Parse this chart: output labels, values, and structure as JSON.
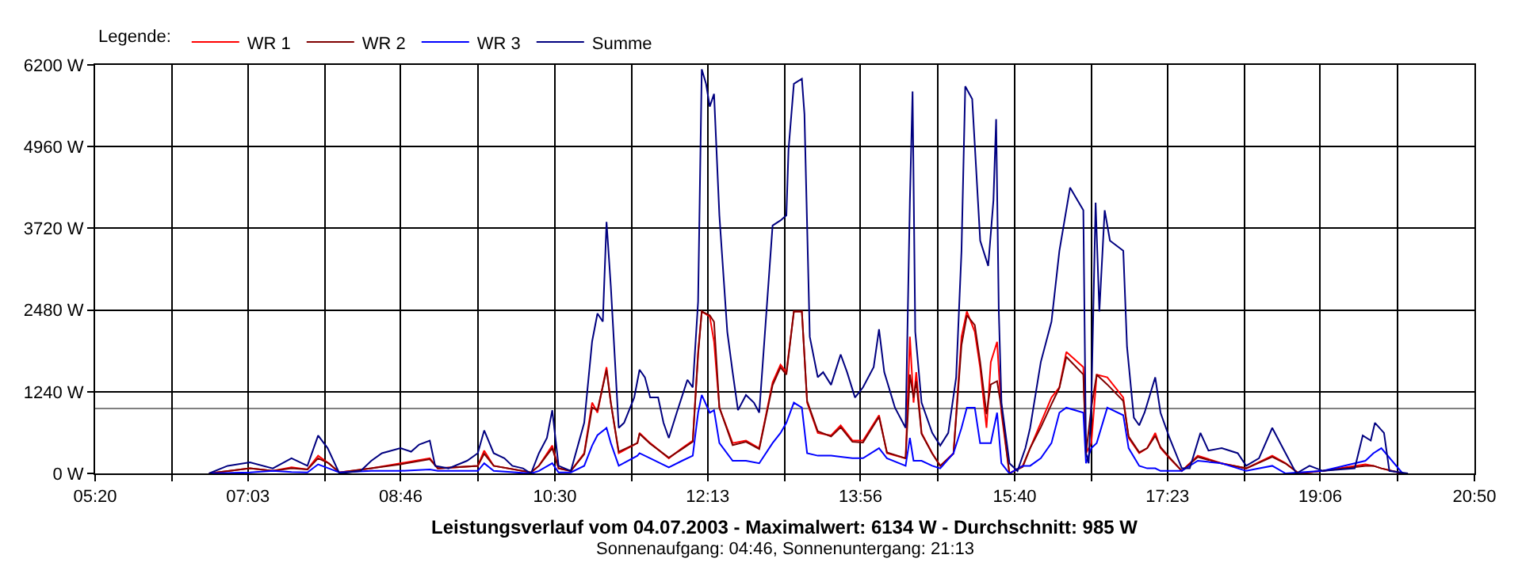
{
  "chart_data": {
    "type": "line",
    "title": "Leistungsverlauf vom 04.07.2003 - Maximalwert: 6134 W - Durchschnitt: 985 W",
    "subtitle": "Sonnenaufgang: 04:46, Sonnenuntergang: 21:13",
    "legend_title": "Legende:",
    "legend": "top left",
    "grid": true,
    "line_style": "solid",
    "xlim": [
      5.333,
      20.833
    ],
    "xticks": [
      {
        "value": 5.333,
        "label": "05:20"
      },
      {
        "value": 6.194,
        "label": null
      },
      {
        "value": 7.05,
        "label": "07:03"
      },
      {
        "value": 7.917,
        "label": null
      },
      {
        "value": 8.7667,
        "label": "08:46"
      },
      {
        "value": 9.639,
        "label": null
      },
      {
        "value": 10.5,
        "label": "10:30"
      },
      {
        "value": 11.361,
        "label": null
      },
      {
        "value": 12.2167,
        "label": "12:13"
      },
      {
        "value": 13.083,
        "label": null
      },
      {
        "value": 13.9333,
        "label": "13:56"
      },
      {
        "value": 14.806,
        "label": null
      },
      {
        "value": 15.667,
        "label": "15:40"
      },
      {
        "value": 16.528,
        "label": null
      },
      {
        "value": 17.3833,
        "label": "17:23"
      },
      {
        "value": 18.25,
        "label": null
      },
      {
        "value": 19.1,
        "label": "19:06"
      },
      {
        "value": 19.972,
        "label": null
      },
      {
        "value": 20.833,
        "label": "20:50"
      }
    ],
    "ylim": [
      0,
      6200
    ],
    "yticks": [
      {
        "value": 0,
        "label": "0 W"
      },
      {
        "value": 1240,
        "label": "1240 W"
      },
      {
        "value": 2480,
        "label": "2480 W"
      },
      {
        "value": 3720,
        "label": "3720 W"
      },
      {
        "value": 4960,
        "label": "4960 W"
      },
      {
        "value": 6200,
        "label": "6200 W"
      }
    ],
    "ref_lines": [
      {
        "axis": "y",
        "value": 985,
        "color": "#808080"
      }
    ],
    "x": [
      6.613,
      7.073,
      7.33,
      7.54,
      7.719,
      7.839,
      7.958,
      8.078,
      8.437,
      8.765,
      9.094,
      9.184,
      9.633,
      9.705,
      9.812,
      10.231,
      10.32,
      10.47,
      10.541,
      10.679,
      10.829,
      10.918,
      10.978,
      11.08,
      11.128,
      11.217,
      11.427,
      11.451,
      11.57,
      11.78,
      11.929,
      12.049,
      12.109,
      12.15,
      12.24,
      12.288,
      12.348,
      12.497,
      12.647,
      12.796,
      12.946,
      13.035,
      13.101,
      13.185,
      13.275,
      13.334,
      13.454,
      13.603,
      13.711,
      13.843,
      13.962,
      14.142,
      14.231,
      14.441,
      14.489,
      14.53,
      14.56,
      14.62,
      14.74,
      14.83,
      14.979,
      15.069,
      15.129,
      15.218,
      15.278,
      15.35,
      15.398,
      15.469,
      15.517,
      15.607,
      15.757,
      15.84,
      15.96,
      16.08,
      16.169,
      16.247,
      16.438,
      16.468,
      16.528,
      16.588,
      16.707,
      16.887,
      16.947,
      17.066,
      17.156,
      17.246,
      17.305,
      17.407,
      17.545,
      17.724,
      17.993,
      18.268,
      18.561,
      18.711,
      18.86,
      19.13,
      19.608,
      19.698,
      19.787,
      20.026
    ],
    "series": [
      {
        "name": "WR 1",
        "color": "#ff0000",
        "values": [
          0,
          77,
          38,
          92,
          61,
          269,
          154,
          15,
          77,
          154,
          230,
          77,
          115,
          346,
          115,
          15,
          115,
          422,
          77,
          38,
          307,
          1075,
          922,
          1613,
          1075,
          307,
          461,
          614,
          461,
          230,
          384,
          499,
          1843,
          2458,
          2381,
          2000,
          998,
          461,
          499,
          384,
          1382,
          1651,
          1536,
          2458,
          2458,
          1075,
          614,
          576,
          730,
          499,
          499,
          883,
          307,
          230,
          2074,
          1075,
          1536,
          614,
          307,
          115,
          307,
          2074,
          2458,
          2150,
          1613,
          691,
          1690,
          1997,
          922,
          0,
          115,
          384,
          768,
          1152,
          1306,
          1843,
          1613,
          307,
          461,
          1498,
          1459,
          1152,
          538,
          307,
          384,
          614,
          384,
          230,
          38,
          269,
          154,
          77,
          269,
          154,
          0,
          38,
          138,
          115,
          77,
          0
        ]
      },
      {
        "name": "WR 2",
        "color": "#800000",
        "values": [
          0,
          77,
          38,
          77,
          61,
          230,
          154,
          15,
          77,
          138,
          215,
          77,
          115,
          300,
          115,
          15,
          115,
          384,
          77,
          38,
          290,
          1000,
          960,
          1570,
          1075,
          330,
          461,
          600,
          450,
          240,
          370,
          480,
          1800,
          2458,
          2400,
          2300,
          1000,
          430,
          480,
          370,
          1340,
          1610,
          1500,
          2458,
          2458,
          1100,
          640,
          560,
          700,
          480,
          470,
          860,
          320,
          230,
          1500,
          1150,
          1400,
          600,
          300,
          115,
          300,
          1950,
          2400,
          2250,
          1700,
          900,
          1350,
          1400,
          1000,
          0,
          100,
          384,
          700,
          1050,
          1300,
          1770,
          1500,
          300,
          1000,
          1498,
          1350,
          1100,
          560,
          320,
          384,
          570,
          400,
          240,
          38,
          250,
          150,
          77,
          250,
          150,
          0,
          38,
          115,
          115,
          77,
          0
        ]
      },
      {
        "name": "WR 3",
        "color": "#0000ff",
        "values": [
          0,
          15,
          38,
          20,
          15,
          138,
          77,
          15,
          38,
          38,
          61,
          38,
          38,
          154,
          38,
          0,
          38,
          154,
          15,
          15,
          115,
          422,
          580,
          691,
          461,
          115,
          269,
          307,
          230,
          92,
          192,
          269,
          922,
          1190,
          922,
          960,
          461,
          192,
          192,
          154,
          461,
          614,
          768,
          1075,
          998,
          307,
          269,
          269,
          253,
          230,
          230,
          384,
          230,
          115,
          538,
          192,
          192,
          192,
          115,
          77,
          307,
          691,
          998,
          998,
          461,
          461,
          461,
          922,
          154,
          0,
          115,
          115,
          230,
          461,
          922,
          998,
          922,
          154,
          384,
          461,
          998,
          883,
          384,
          115,
          77,
          77,
          38,
          38,
          38,
          192,
          154,
          38,
          115,
          0,
          15,
          38,
          192,
          307,
          384,
          0
        ]
      },
      {
        "name": "Summe",
        "color": "#000080",
        "x": [
          6.613,
          6.822,
          7.073,
          7.33,
          7.54,
          7.719,
          7.839,
          7.946,
          8.078,
          8.317,
          8.437,
          8.556,
          8.765,
          8.884,
          8.974,
          9.094,
          9.154,
          9.304,
          9.513,
          9.633,
          9.705,
          9.812,
          9.932,
          10.021,
          10.141,
          10.231,
          10.32,
          10.41,
          10.47,
          10.541,
          10.679,
          10.829,
          10.918,
          10.978,
          11.038,
          11.08,
          11.128,
          11.217,
          11.277,
          11.391,
          11.451,
          11.511,
          11.57,
          11.66,
          11.72,
          11.78,
          11.869,
          11.989,
          12.049,
          12.109,
          12.15,
          12.198,
          12.24,
          12.288,
          12.348,
          12.437,
          12.497,
          12.557,
          12.647,
          12.736,
          12.796,
          12.946,
          13.035,
          13.101,
          13.125,
          13.185,
          13.275,
          13.304,
          13.364,
          13.454,
          13.514,
          13.603,
          13.711,
          13.783,
          13.872,
          13.962,
          14.082,
          14.142,
          14.201,
          14.321,
          14.441,
          14.489,
          14.519,
          14.549,
          14.62,
          14.74,
          14.83,
          14.92,
          15.009,
          15.069,
          15.111,
          15.189,
          15.279,
          15.369,
          15.428,
          15.458,
          15.488,
          15.518,
          15.608,
          15.698,
          15.787,
          15.84,
          15.96,
          16.08,
          16.169,
          16.289,
          16.438,
          16.468,
          16.498,
          16.528,
          16.576,
          16.618,
          16.678,
          16.737,
          16.887,
          16.929,
          17.006,
          17.066,
          17.126,
          17.246,
          17.305,
          17.407,
          17.545,
          17.634,
          17.754,
          17.844,
          17.993,
          18.173,
          18.268,
          18.412,
          18.561,
          18.711,
          18.831,
          18.98,
          19.13,
          19.488,
          19.578,
          19.668,
          19.715,
          19.817,
          19.877,
          20.086
        ],
        "values": [
          0,
          115,
          169,
          77,
          230,
          115,
          576,
          384,
          0,
          38,
          192,
          307,
          384,
          330,
          438,
          499,
          115,
          77,
          192,
          307,
          653,
          307,
          230,
          115,
          77,
          0,
          307,
          538,
          960,
          115,
          38,
          768,
          2004,
          2427,
          2304,
          3817,
          2842,
          691,
          768,
          1152,
          1574,
          1459,
          1152,
          1152,
          768,
          538,
          922,
          1421,
          1306,
          2611,
          6134,
          5914,
          5568,
          5760,
          3917,
          2150,
          1536,
          960,
          1190,
          1075,
          922,
          3763,
          3840,
          3917,
          4915,
          5914,
          5990,
          5453,
          2074,
          1459,
          1536,
          1344,
          1805,
          1536,
          1152,
          1306,
          1613,
          2189,
          1536,
          998,
          691,
          4147,
          5798,
          2150,
          1075,
          614,
          422,
          614,
          1459,
          3379,
          5875,
          5683,
          3533,
          3149,
          4147,
          5376,
          2458,
          1075,
          154,
          38,
          384,
          691,
          1690,
          2304,
          3379,
          4339,
          3994,
          307,
          154,
          1075,
          4109,
          2458,
          3994,
          3533,
          3379,
          1920,
          845,
          730,
          922,
          1459,
          922,
          538,
          77,
          77,
          614,
          346,
          384,
          307,
          115,
          230,
          691,
          307,
          0,
          115,
          38,
          77,
          576,
          499,
          768,
          614,
          38,
          0
        ]
      }
    ]
  }
}
